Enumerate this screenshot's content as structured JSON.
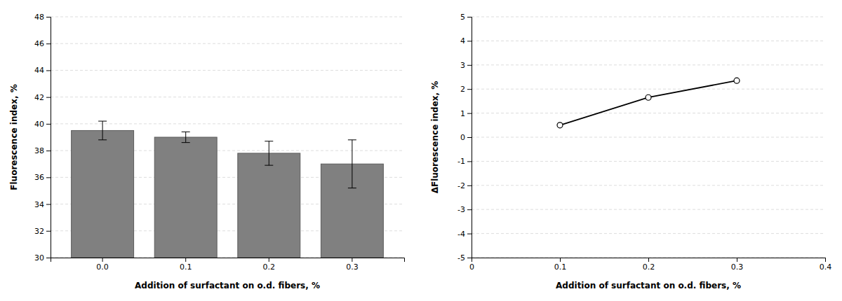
{
  "chart_data": [
    {
      "type": "bar",
      "categories": [
        "0.0",
        "0.1",
        "0.2",
        "0.3"
      ],
      "values": [
        39.5,
        39.0,
        37.8,
        37.0
      ],
      "errors": [
        0.7,
        0.4,
        0.9,
        1.8
      ],
      "color": "#808080",
      "ylim": [
        30,
        48
      ],
      "yticks": [
        30,
        32,
        34,
        36,
        38,
        40,
        42,
        44,
        46,
        48
      ],
      "xlabel": "Addition of surfactant on o.d. fibers, %",
      "ylabel": "Fluorescence index, %",
      "grid": true
    },
    {
      "type": "line",
      "x": [
        0.1,
        0.2,
        0.3
      ],
      "values": [
        0.5,
        1.65,
        2.35
      ],
      "color": "#000000",
      "marker": "circle",
      "xlim": [
        0.0,
        0.4
      ],
      "xticks": [
        0,
        0.1,
        0.2,
        0.3,
        0.4
      ],
      "ylim": [
        -5,
        5
      ],
      "yticks": [
        -5,
        -4,
        -3,
        -2,
        -1,
        0,
        1,
        2,
        3,
        4,
        5
      ],
      "xlabel": "Addition of surfactant on o.d. fibers, %",
      "ylabel": "ΔFluorescence index, %",
      "grid": true
    }
  ]
}
